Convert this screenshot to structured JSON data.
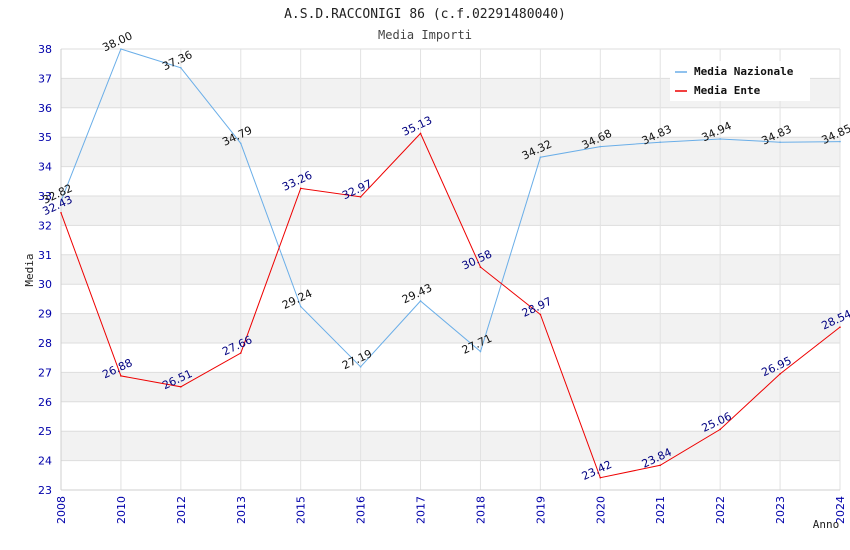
{
  "chart_data": {
    "type": "line",
    "title": "A.S.D.RACCONIGI 86 (c.f.02291480040)",
    "subtitle": "Media Importi",
    "xlabel": "Anno",
    "ylabel": "Media",
    "ylim": [
      23,
      38
    ],
    "yticks": [
      23,
      24,
      25,
      26,
      27,
      28,
      29,
      30,
      31,
      32,
      33,
      34,
      35,
      36,
      37,
      38
    ],
    "categories": [
      "2008",
      "2010",
      "2012",
      "2013",
      "2015",
      "2016",
      "2017",
      "2018",
      "2019",
      "2020",
      "2021",
      "2022",
      "2023",
      "2024"
    ],
    "series": [
      {
        "name": "Media Nazionale",
        "color": "#6aaee8",
        "label_color": "#111111",
        "values": [
          32.82,
          38.0,
          37.36,
          34.79,
          29.24,
          27.19,
          29.43,
          27.71,
          34.32,
          34.68,
          34.83,
          34.94,
          34.83,
          34.85
        ],
        "labels": [
          "32.82",
          "38.00",
          "37.36",
          "34.79",
          "29.24",
          "27.19",
          "29.43",
          "27.71",
          "34.32",
          "34.68",
          "34.83",
          "34.94",
          "34.83",
          "34.85"
        ]
      },
      {
        "name": "Media Ente",
        "color": "#ee0000",
        "label_color": "#000080",
        "values": [
          32.43,
          26.88,
          26.51,
          27.66,
          33.26,
          32.97,
          35.13,
          30.58,
          28.97,
          23.42,
          23.84,
          25.06,
          26.95,
          28.54
        ],
        "labels": [
          "32.43",
          "26.88",
          "26.51",
          "27.66",
          "33.26",
          "32.97",
          "35.13",
          "30.58",
          "28.97",
          "23.42",
          "23.84",
          "25.06",
          "26.95",
          "28.54"
        ]
      }
    ],
    "legend_position": "top-right",
    "grid": true
  }
}
